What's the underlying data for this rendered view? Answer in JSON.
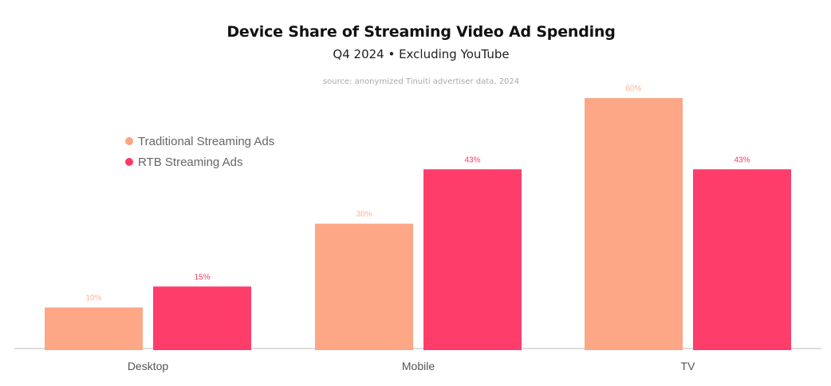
{
  "chart_data": {
    "type": "bar",
    "title": "Device Share of Streaming Video Ad Spending",
    "subtitle": "Q4 2024 • Excluding YouTube",
    "source": "source: anonymized Tinuiti advertiser data, 2024",
    "categories": [
      "Desktop",
      "Mobile",
      "TV"
    ],
    "series": [
      {
        "name": "Traditional Streaming Ads",
        "color": "#fda482",
        "label_color": "#fdb494",
        "values": [
          10,
          30,
          60
        ],
        "labels": [
          "10%",
          "30%",
          "60%"
        ]
      },
      {
        "name": "RTB Streaming Ads",
        "color": "#ff3766",
        "label_color": "#ff3766",
        "values": [
          15,
          43,
          43
        ],
        "labels": [
          "15%",
          "43%",
          "43%"
        ]
      }
    ],
    "xlabel": "",
    "ylabel": "",
    "ylim": [
      0,
      60
    ],
    "grid": false,
    "legend_position": "top-left",
    "axis_color": "#dddddd",
    "tick_label_color": "#555555"
  }
}
